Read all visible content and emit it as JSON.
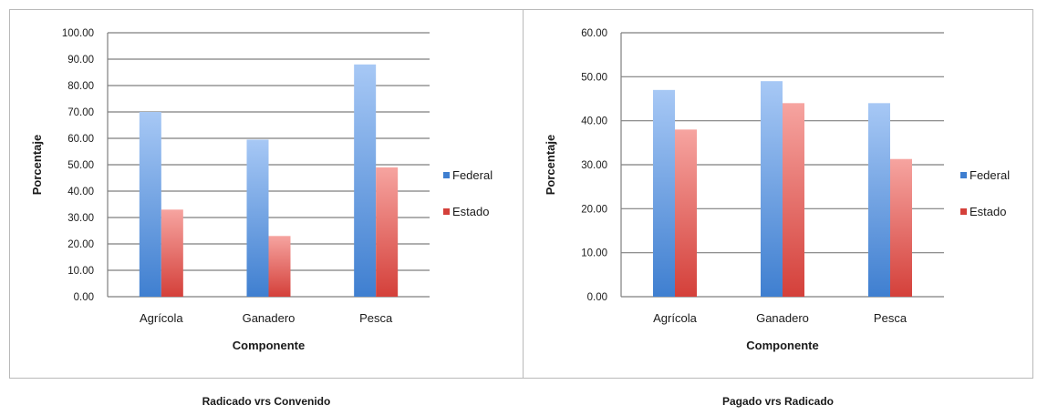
{
  "colors": {
    "federal_top": "#a7c8f5",
    "federal_bottom": "#3f7fd0",
    "estado_top": "#f6a4a0",
    "estado_bottom": "#d4403a",
    "grid": "#7f7f7f"
  },
  "chart_data": [
    {
      "type": "bar",
      "title": "Radicado vrs Convenido",
      "xlabel": "Componente",
      "ylabel": "Porcentaje",
      "categories": [
        "Agrícola",
        "Ganadero",
        "Pesca"
      ],
      "series": [
        {
          "name": "Federal",
          "values": [
            70.0,
            59.5,
            88.0
          ]
        },
        {
          "name": "Estado",
          "values": [
            33.0,
            23.0,
            49.0
          ]
        }
      ],
      "ylim": [
        0,
        100
      ],
      "yticks": [
        "0.00",
        "10.00",
        "20.00",
        "30.00",
        "40.00",
        "50.00",
        "60.00",
        "70.00",
        "80.00",
        "90.00",
        "100.00"
      ],
      "grid": true,
      "legend": "right"
    },
    {
      "type": "bar",
      "title": "Pagado vrs Radicado",
      "xlabel": "Componente",
      "ylabel": "Porcentaje",
      "categories": [
        "Agrícola",
        "Ganadero",
        "Pesca"
      ],
      "series": [
        {
          "name": "Federal",
          "values": [
            47.0,
            49.0,
            44.0
          ]
        },
        {
          "name": "Estado",
          "values": [
            38.0,
            44.0,
            31.3
          ]
        }
      ],
      "ylim": [
        0,
        60
      ],
      "yticks": [
        "0.00",
        "10.00",
        "20.00",
        "30.00",
        "40.00",
        "50.00",
        "60.00"
      ],
      "grid": true,
      "legend": "right"
    }
  ]
}
